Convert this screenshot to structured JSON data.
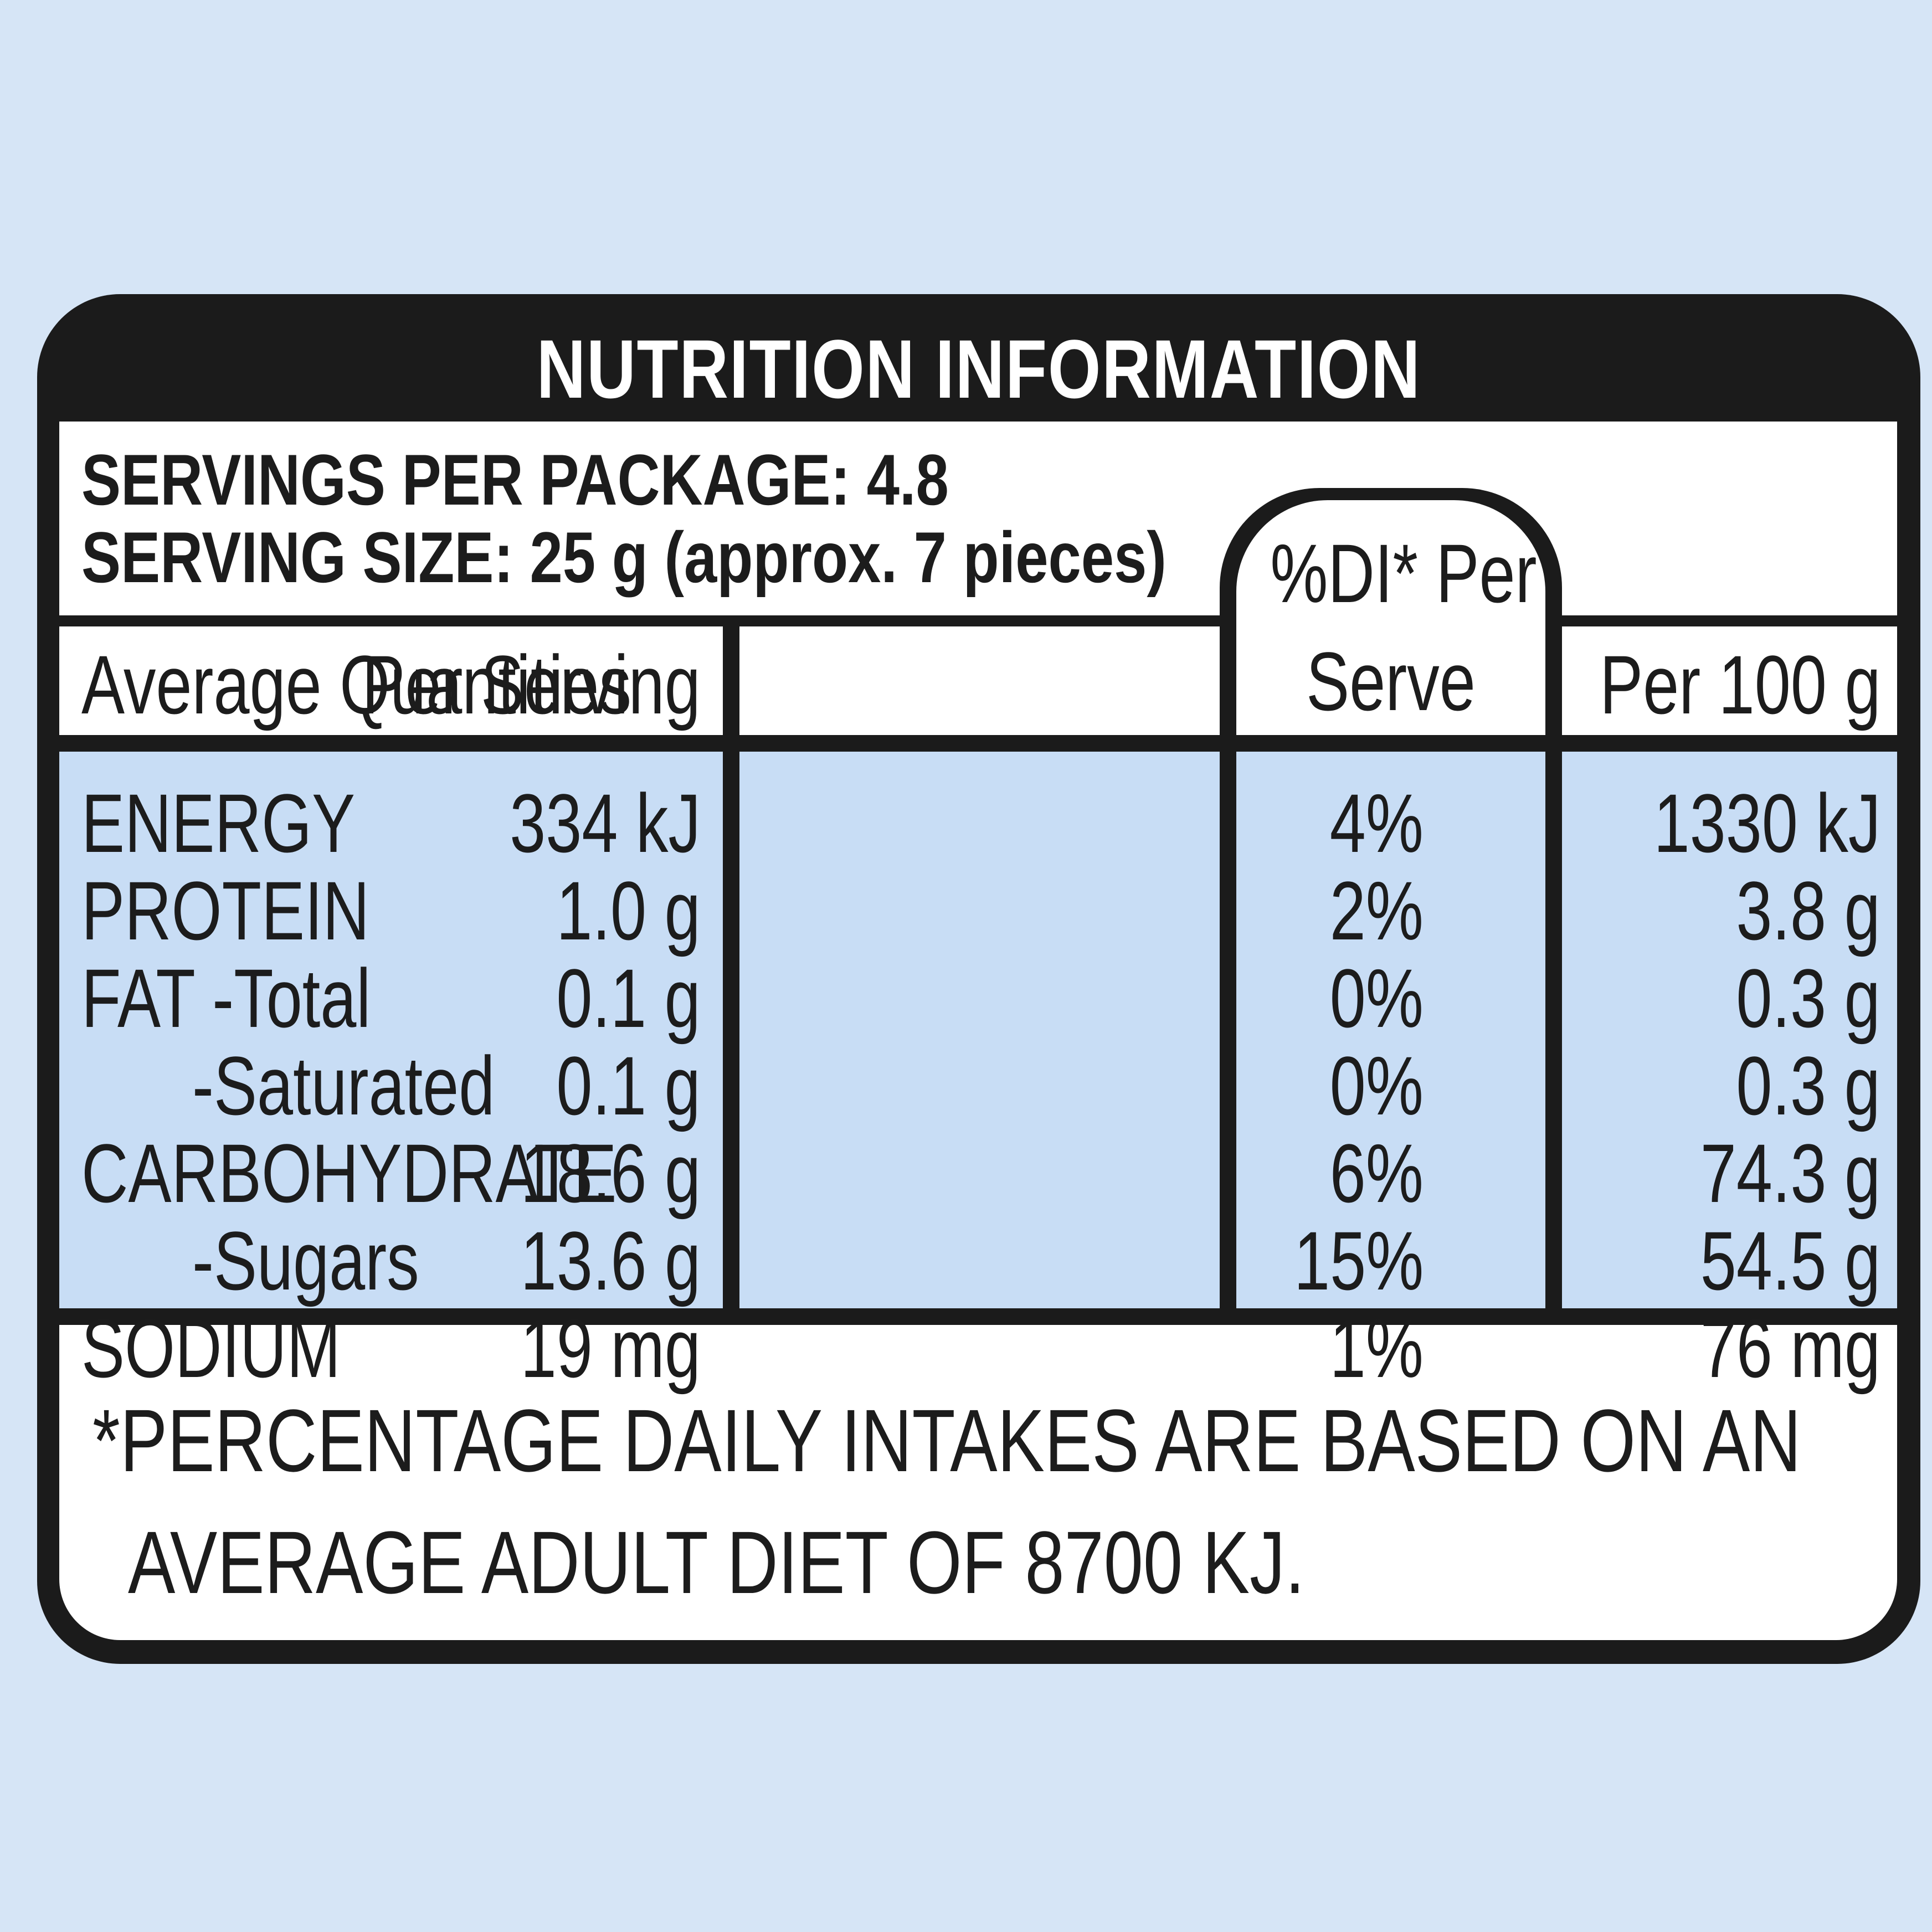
{
  "title": "NUTRITION INFORMATION",
  "servings_per_package": "SERVINGS PER PACKAGE: 4.8",
  "serving_size": "SERVING SIZE: 25 g (approx. 7 pieces)",
  "headers": {
    "col1": "Average Quantities",
    "col2": "Per Serving",
    "col3_line1": "%DI* Per",
    "col3_line2": "Serve",
    "col4": "Per 100 g"
  },
  "rows": [
    {
      "name": "ENERGY",
      "per_serving": "334 kJ",
      "di": "4%",
      "per_100g": "1330 kJ"
    },
    {
      "name": "PROTEIN",
      "per_serving": "1.0 g",
      "di": "2%",
      "per_100g": "3.8 g"
    },
    {
      "name": "FAT  -Total",
      "per_serving": "0.1 g",
      "di": "0%",
      "per_100g": "0.3 g"
    },
    {
      "name": "-Saturated",
      "per_serving": "0.1 g",
      "di": "0%",
      "per_100g": "0.3 g"
    },
    {
      "name": "CARBOHYDRATE",
      "per_serving": "18.6 g",
      "di": "6%",
      "per_100g": "74.3 g"
    },
    {
      "name": "-Sugars",
      "per_serving": "13.6 g",
      "di": "15%",
      "per_100g": "54.5 g"
    },
    {
      "name": "SODIUM",
      "per_serving": "19 mg",
      "di": "1%",
      "per_100g": "76 mg"
    }
  ],
  "footnote_line1": "*PERCENTAGE DAILY INTAKES ARE BASED ON AN",
  "footnote_line2": "AVERAGE ADULT DIET OF 8700 KJ.",
  "colors": {
    "background": "#d6e5f6",
    "border": "#1b1b1b",
    "data_cells": "#c8ddf5",
    "text": "#1c1c1c"
  }
}
